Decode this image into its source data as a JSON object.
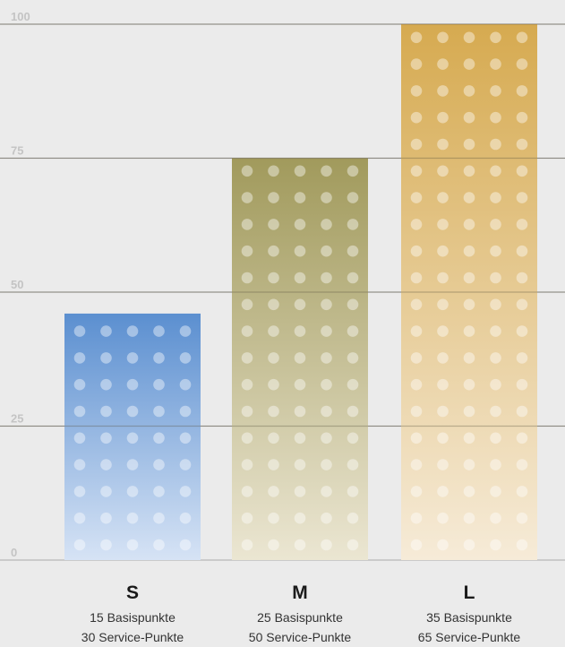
{
  "chart_data": {
    "type": "bar",
    "categories": [
      "S",
      "M",
      "L"
    ],
    "values": [
      46,
      75,
      100
    ],
    "ylim": [
      0,
      100
    ],
    "yticks": [
      0,
      25,
      50,
      75,
      100
    ],
    "grid": true,
    "legend": "none",
    "category_details": [
      {
        "name": "S",
        "lines": [
          "15 Basispunkte",
          "30 Service-Punkte"
        ]
      },
      {
        "name": "M",
        "lines": [
          "25 Basispunkte",
          "50 Service-Punkte"
        ]
      },
      {
        "name": "L",
        "lines": [
          "35 Basispunkte",
          "65 Service-Punkte"
        ]
      }
    ]
  },
  "colors": {
    "background": "#ebebeb",
    "grid": "#a8a8a8",
    "tick_label": "#c4c4c4",
    "bar_s_top": "#5b8fd0",
    "bar_s_bottom": "#d6e3f5",
    "bar_m_top": "#a19a5c",
    "bar_m_bottom": "#ebe6d2",
    "bar_l_top": "#d6aa50",
    "bar_l_bottom": "#f6ebd8"
  }
}
